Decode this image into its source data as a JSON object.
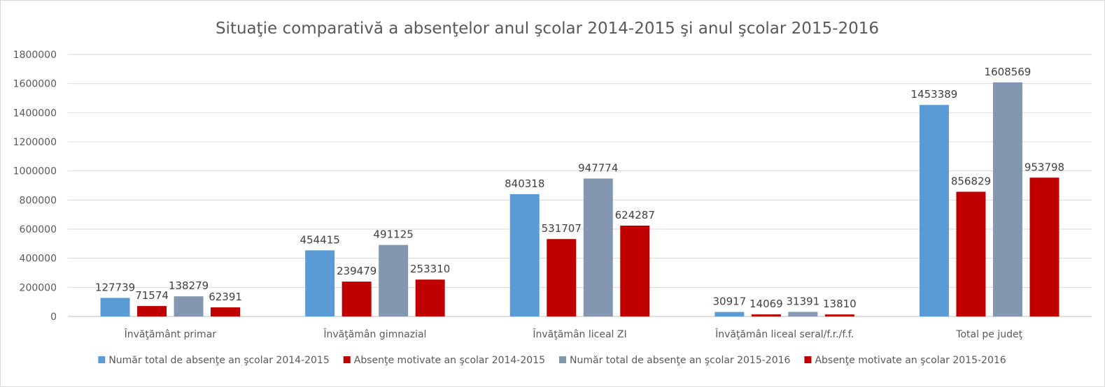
{
  "chart_data": {
    "type": "bar",
    "title": "Situaţie comparativă a absenţelor anul şcolar 2014-2015 şi anul şcolar 2015-2016",
    "categories": [
      "Învăţământ primar",
      "Învăţămân gimnazial",
      "Învăţămân liceal ZI",
      "Învăţămân liceal seral/f.r./f.f.",
      "Total pe judeţ"
    ],
    "series": [
      {
        "name": "Număr  total de absenţe an şcolar 2014-2015",
        "color": "#5b9bd5",
        "values": [
          127739,
          454415,
          840318,
          30917,
          1453389
        ]
      },
      {
        "name": "Absenţe motivate an şcolar 2014-2015",
        "color": "#c00000",
        "values": [
          71574,
          239479,
          531707,
          14069,
          856829
        ]
      },
      {
        "name": "Număr  total de absenţe an şcolar 2015-2016",
        "color": "#8497b0",
        "values": [
          138279,
          491125,
          947774,
          31391,
          1608569
        ]
      },
      {
        "name": "Absenţe motivate an şcolar 2015-2016",
        "color": "#c00000",
        "values": [
          62391,
          253310,
          624287,
          13810,
          953798
        ]
      }
    ],
    "ylim": [
      0,
      1800000
    ],
    "yticks": [
      "0",
      "200000",
      "400000",
      "600000",
      "800000",
      "1000000",
      "1200000",
      "1400000",
      "1600000",
      "1800000"
    ],
    "xlabel": "",
    "ylabel": "",
    "grid": true,
    "legend": "bottom",
    "data_labels": true
  }
}
